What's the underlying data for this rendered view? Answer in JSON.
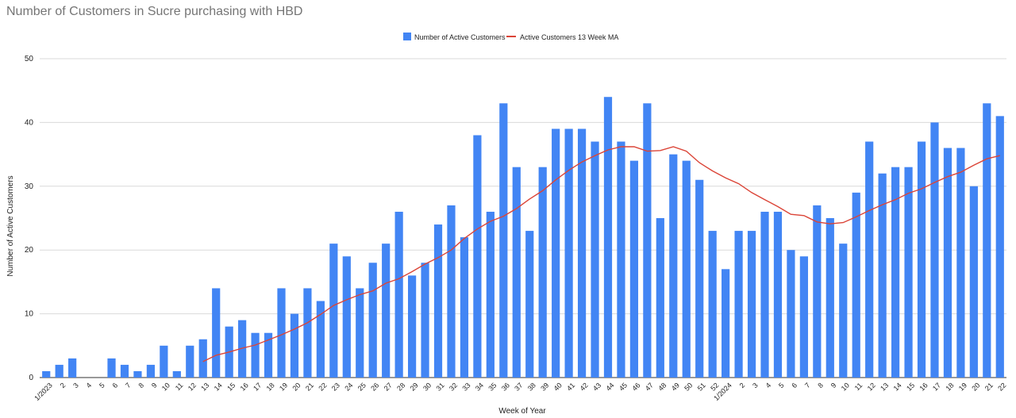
{
  "chart_data": {
    "type": "bar",
    "title": "Number of Customers in Sucre purchasing with HBD",
    "xlabel": "Week of Year",
    "ylabel": "Number of Active Customers",
    "ylim": [
      0,
      50
    ],
    "yticks": [
      0,
      10,
      20,
      30,
      40,
      50
    ],
    "grid": true,
    "legend_position": "top",
    "categories": [
      "1/2023",
      "2",
      "3",
      "4",
      "5",
      "6",
      "7",
      "8",
      "9",
      "10",
      "11",
      "12",
      "13",
      "14",
      "15",
      "16",
      "17",
      "18",
      "19",
      "20",
      "21",
      "22",
      "23",
      "24",
      "25",
      "26",
      "27",
      "28",
      "29",
      "30",
      "31",
      "32",
      "33",
      "34",
      "35",
      "36",
      "37",
      "38",
      "39",
      "40",
      "41",
      "42",
      "43",
      "44",
      "45",
      "46",
      "47",
      "48",
      "49",
      "50",
      "51",
      "52",
      "1/2024",
      "2",
      "3",
      "4",
      "5",
      "6",
      "7",
      "8",
      "9",
      "10",
      "11",
      "12",
      "13",
      "14",
      "15",
      "16",
      "17",
      "18",
      "19",
      "20",
      "21",
      "22"
    ],
    "series": [
      {
        "name": "Number of Active Customers",
        "type": "bar",
        "color": "#4285f4",
        "values": [
          1,
          2,
          3,
          0,
          0,
          3,
          2,
          1,
          2,
          5,
          1,
          5,
          6,
          14,
          8,
          9,
          7,
          7,
          14,
          10,
          14,
          12,
          21,
          19,
          14,
          18,
          21,
          26,
          16,
          18,
          24,
          27,
          22,
          38,
          26,
          43,
          33,
          23,
          33,
          39,
          39,
          39,
          37,
          44,
          37,
          34,
          43,
          25,
          35,
          34,
          31,
          23,
          17,
          23,
          23,
          26,
          26,
          20,
          19,
          27,
          25,
          21,
          29,
          37,
          32,
          33,
          33,
          37,
          40,
          36,
          36,
          30,
          43,
          41
        ]
      },
      {
        "name": "Active Customers 13 Week MA",
        "type": "line",
        "color": "#db4437",
        "values": [
          null,
          null,
          null,
          null,
          null,
          null,
          null,
          null,
          null,
          null,
          null,
          null,
          2.5,
          3.5,
          4.0,
          4.6,
          5.1,
          5.9,
          6.7,
          7.6,
          8.6,
          9.9,
          11.3,
          12.2,
          13.0,
          13.6,
          14.8,
          15.5,
          16.6,
          17.8,
          18.8,
          20.0,
          21.8,
          23.3,
          24.5,
          25.3,
          26.5,
          28.0,
          29.3,
          31.0,
          32.5,
          33.8,
          34.8,
          35.7,
          36.2,
          36.2,
          35.5,
          35.6,
          36.2,
          35.5,
          33.7,
          32.4,
          31.3,
          30.4,
          29.0,
          27.9,
          26.8,
          25.6,
          25.4,
          24.4,
          24.1,
          24.3,
          25.2,
          26.2,
          27.1,
          27.9,
          28.9,
          29.6,
          30.6,
          31.5,
          32.2,
          33.3,
          34.3,
          34.8
        ]
      }
    ]
  }
}
